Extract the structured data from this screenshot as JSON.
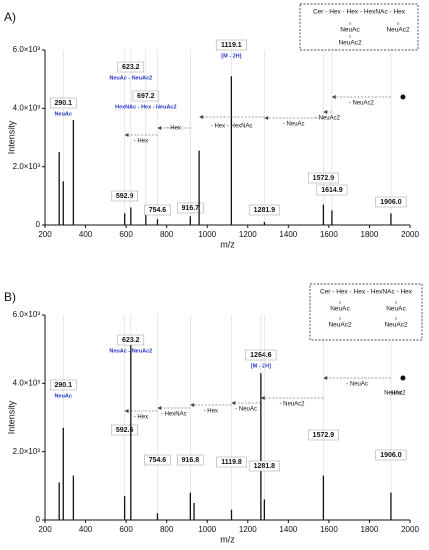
{
  "chart_data": [
    {
      "type": "bar",
      "panel_label": "A)",
      "x_label": "m/z",
      "y_label": "Intensity",
      "color": "#111111",
      "xlim": [
        200,
        2000
      ],
      "xticks": [
        200,
        400,
        600,
        800,
        1000,
        1200,
        1400,
        1600,
        1800,
        2000
      ],
      "ylim": [
        0,
        6000
      ],
      "yticks": [
        0,
        {
          "value": 2000,
          "label": "2.0×10³"
        },
        {
          "value": 4000,
          "label": "4.0×10³"
        },
        {
          "value": 6000,
          "label": "6.0×10³"
        }
      ],
      "x": [
        270,
        290.1,
        340,
        592.9,
        623.2,
        697.2,
        754.6,
        916.7,
        960,
        1119.1,
        1281.9,
        1572.9,
        1614.9,
        1906.0
      ],
      "values": [
        2500,
        1500,
        3600,
        400,
        600,
        450,
        200,
        300,
        2550,
        5100,
        100,
        700,
        500,
        400
      ],
      "peak_labels": [
        null,
        "290.1",
        null,
        "592.9",
        "623.2",
        "697.2",
        "754.6",
        "916.7",
        null,
        "1119.1",
        "1281.9",
        "1572.9",
        "1614.9",
        "1906.0"
      ],
      "peak_notes": [
        null,
        "NeuAc",
        null,
        null,
        "NeuAc - NeuAc2",
        "HexNAc - Hex - NeuAc2",
        null,
        null,
        null,
        "[M - 2H]",
        null,
        null,
        null,
        null
      ],
      "arrow_labels": [
        "- NeuAc2",
        "- NeuAc2",
        "- NeuAc",
        "- Hex - HexNAc",
        "- Hex",
        "- Hex"
      ],
      "structure": [
        "Cer - Hex - Hex - HexNAc - Hex",
        "NeuAc",
        "NeuAc2",
        "NeuAc2"
      ]
    },
    {
      "type": "bar",
      "panel_label": "B)",
      "x_label": "m/z",
      "y_label": "Intensity",
      "color": "#111111",
      "xlim": [
        200,
        2000
      ],
      "xticks": [
        200,
        400,
        600,
        800,
        1000,
        1200,
        1400,
        1600,
        1800,
        2000
      ],
      "ylim": [
        0,
        6000
      ],
      "yticks": [
        0,
        {
          "value": 2000,
          "label": "2.0×10³"
        },
        {
          "value": 4000,
          "label": "4.0×10³"
        },
        {
          "value": 6000,
          "label": "6.0×10³"
        }
      ],
      "x": [
        270,
        290.1,
        340,
        592.6,
        623.2,
        754.6,
        916.8,
        935,
        1119.8,
        1264.6,
        1281.8,
        1572.9,
        1906.0
      ],
      "values": [
        1100,
        2700,
        1300,
        700,
        5400,
        200,
        800,
        500,
        300,
        4300,
        600,
        1300,
        800
      ],
      "peak_labels": [
        null,
        "290.1",
        null,
        "592.6",
        "623.2",
        "754.6",
        "916.8",
        null,
        "1119.8",
        "1264.6",
        "1281.8",
        "1572.9",
        "1906.0"
      ],
      "peak_notes": [
        null,
        "NeuAc",
        null,
        null,
        "NeuAc - NeuAc2",
        null,
        null,
        null,
        null,
        "[M - 2H]",
        null,
        null,
        null
      ],
      "arrow_labels": [
        "- NeuAc",
        "NeuAc2",
        "- NeuAc2",
        "- NeuAc",
        "- Hex",
        "- HexNAc",
        "- Hex",
        "- Hex"
      ],
      "structure": [
        "Cer - Hex - Hex - HexNAc - Hex",
        "NeuAc",
        "NeuAc2",
        "NeuAc",
        "NeuAc2"
      ]
    }
  ]
}
